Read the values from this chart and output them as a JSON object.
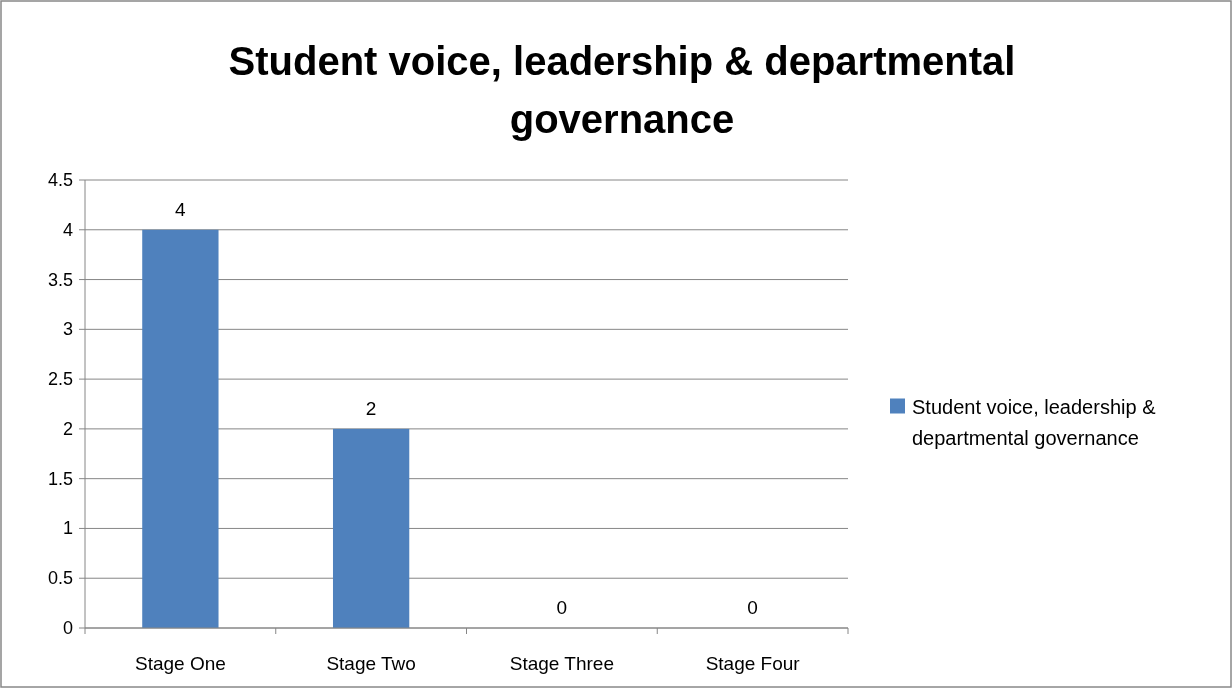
{
  "chart_data": {
    "type": "bar",
    "title": "Student voice, leadership & departmental governance",
    "categories": [
      "Stage One",
      "Stage Two",
      "Stage Three",
      "Stage Four"
    ],
    "series": [
      {
        "name": "Student voice, leadership & departmental governance",
        "color": "#4f81bd",
        "values": [
          4,
          2,
          0,
          0
        ]
      }
    ],
    "ylim": [
      0,
      4.5
    ],
    "yticks": [
      0,
      0.5,
      1,
      1.5,
      2,
      2.5,
      3,
      3.5,
      4,
      4.5
    ],
    "grid": "y",
    "legend": "right",
    "data_labels": true
  }
}
